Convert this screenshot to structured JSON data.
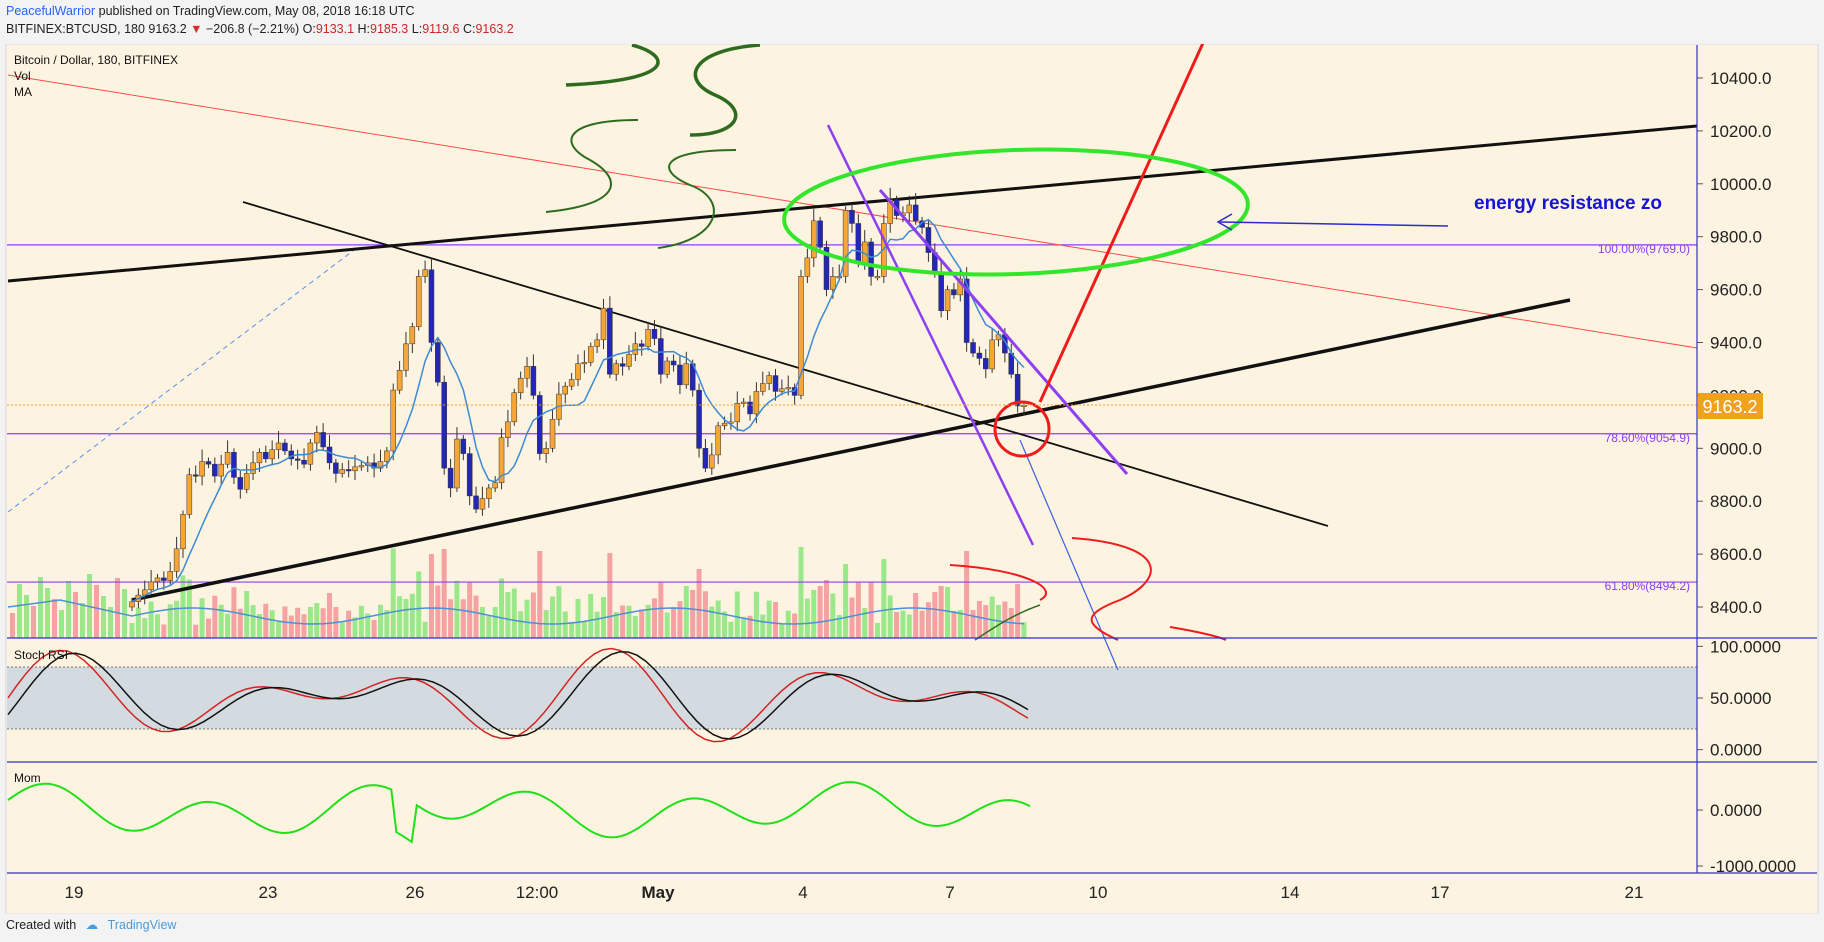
{
  "header": {
    "user": "PeacefulWarrior",
    "published": "published on TradingView.com, May 08, 2018 16:18 UTC",
    "symbol_line": "BITFINEX:BTCUSD, 180",
    "last": "9163.2",
    "change": "−206.8 (−2.21%)",
    "open_label": "O:",
    "open": "9133.1",
    "high_label": "H:",
    "high": "9185.3",
    "low_label": "L:",
    "low": "9119.6",
    "close_label": "C:",
    "close": "9163.2"
  },
  "legend": {
    "title": "Bitcoin / Dollar, 180, BITFINEX",
    "vol": "Vol",
    "ma": "MA",
    "stoch": "Stoch RSI",
    "mom": "Mom"
  },
  "price_label": "9163.2",
  "annotation_text": "energy resistance zo",
  "fib_levels": [
    {
      "label": "100.00%(9769.0)",
      "value": 9769.0
    },
    {
      "label": "78.60%(9054.9)",
      "value": 9054.9
    },
    {
      "label": "61.80%(8494.2)",
      "value": 8494.2
    }
  ],
  "footer": {
    "created": "Created with",
    "brand": "TradingView"
  },
  "colors": {
    "background": "#fdf3e1",
    "up": "#f7a535",
    "down": "#2426b8",
    "fib": "#8d3ff2",
    "accent_red": "#ef1c1c",
    "accent_green": "#33e62b",
    "label_orange": "#f2a020"
  },
  "chart_data": {
    "type": "candlestick",
    "title": "Bitcoin / Dollar, 180, BITFINEX",
    "price_axis": {
      "ticks": [
        "10400.0",
        "10200.0",
        "10000.0",
        "9800.0",
        "9600.0",
        "9400.0",
        "9200.0",
        "9000.0",
        "8800.0",
        "8600.0",
        "8400.0"
      ],
      "range": [
        8300,
        10600
      ]
    },
    "x_ticks": [
      "19",
      "23",
      "26",
      "12:00",
      "May",
      "4",
      "7",
      "10",
      "14",
      "17",
      "21"
    ],
    "stoch_axis": {
      "ticks": [
        "100.0000",
        "50.0000",
        "0.0000"
      ],
      "range": [
        0,
        100
      ],
      "band": [
        20,
        80
      ]
    },
    "mom_axis": {
      "ticks": [
        "0.0000",
        "-1000.0000"
      ]
    },
    "last_price": 9163.2,
    "candle_closes": [
      8420,
      8445,
      8465,
      8495,
      8510,
      8500,
      8535,
      8620,
      8750,
      8900,
      8895,
      8950,
      8940,
      8895,
      8940,
      8985,
      8890,
      8845,
      8905,
      8945,
      8985,
      8960,
      8995,
      9020,
      8990,
      8960,
      8955,
      8940,
      9020,
      9060,
      9005,
      8945,
      8905,
      8920,
      8915,
      8930,
      8935,
      8945,
      8925,
      8950,
      8990,
      9220,
      9295,
      9395,
      9460,
      9650,
      9675,
      9400,
      9250,
      8925,
      8850,
      9035,
      8980,
      8820,
      8770,
      8810,
      8850,
      8870,
      9040,
      9100,
      9210,
      9265,
      9310,
      9200,
      8980,
      9000,
      9110,
      9205,
      9235,
      9260,
      9320,
      9325,
      9385,
      9410,
      9530,
      9280,
      9320,
      9310,
      9355,
      9395,
      9385,
      9450,
      9415,
      9280,
      9330,
      9315,
      9240,
      9320,
      9220,
      9000,
      8925,
      8975,
      9085,
      9095,
      9100,
      9170,
      9175,
      9130,
      9215,
      9245,
      9275,
      9215,
      9225,
      9230,
      9200,
      9650,
      9720,
      9860,
      9760,
      9600,
      9650,
      9650,
      9900,
      9850,
      9700,
      9780,
      9650,
      9650,
      9850,
      9940,
      9880,
      9890,
      9920,
      9860,
      9835,
      9740,
      9660,
      9520,
      9600,
      9580,
      9640,
      9400,
      9360,
      9340,
      9300,
      9410,
      9430,
      9360,
      9280,
      9160,
      9163
    ]
  }
}
